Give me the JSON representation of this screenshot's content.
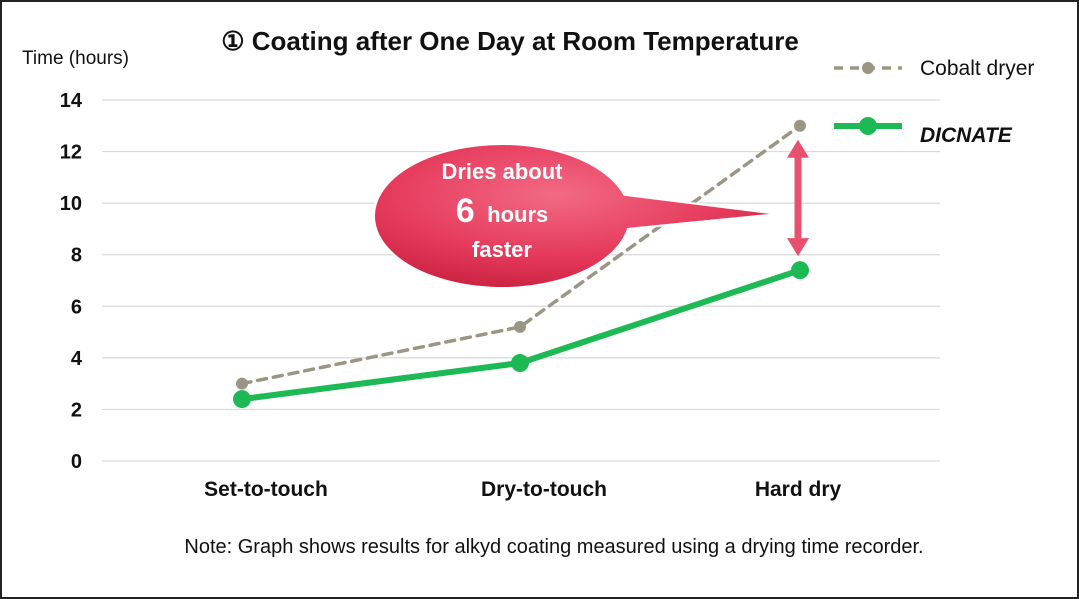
{
  "chart_data": {
    "type": "line",
    "title": "① Coating after One Day at Room Temperature",
    "ylabel": "Time (hours)",
    "xlabel": "",
    "categories": [
      "Set-to-touch",
      "Dry-to-touch",
      "Hard dry"
    ],
    "ylim": [
      0,
      14
    ],
    "yticks": [
      0,
      2,
      4,
      6,
      8,
      10,
      12,
      14
    ],
    "grid": true,
    "legend_position": "top-right",
    "series": [
      {
        "name": "Cobalt dryer",
        "values": [
          3.0,
          5.2,
          13.0
        ],
        "color": "#9b9584",
        "style": "dashed"
      },
      {
        "name": "DICNATE",
        "values": [
          2.4,
          3.8,
          7.4
        ],
        "color": "#1db954",
        "style": "solid"
      }
    ],
    "annotation": {
      "line1": "Dries about",
      "big": "6",
      "line2_suffix": "hours",
      "line3": "faster",
      "fill": "#e63a5c",
      "arrow_color": "#e8506e"
    },
    "note": "Note: Graph shows results for alkyd coating measured using a drying time recorder."
  }
}
